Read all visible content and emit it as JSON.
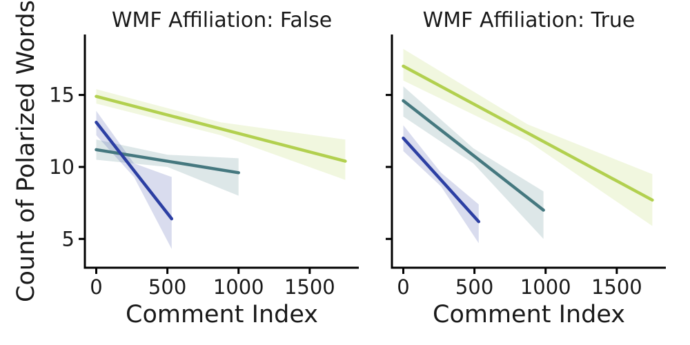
{
  "figure": {
    "background": "#ffffff",
    "text_color": "#1a1a1a",
    "axis_color": "#000000"
  },
  "chart_data": [
    {
      "type": "line",
      "title": "WMF Affiliation: False",
      "xlabel": "Comment Index",
      "ylabel": "Count of Polarized Words",
      "xlim": [
        -80,
        1845
      ],
      "ylim": [
        3.0,
        19.2
      ],
      "xticks": [
        0,
        500,
        1000,
        1500
      ],
      "xtick_labels": [
        "0",
        "500",
        "1000",
        "1500"
      ],
      "yticks": [
        5,
        10,
        15
      ],
      "ytick_labels": [
        "5",
        "10",
        "15"
      ],
      "show_ytick_labels": true,
      "grid": false,
      "legend": "none",
      "series": [
        {
          "name": "series-green",
          "color": "#b2d04f",
          "x": [
            0,
            1750
          ],
          "y": [
            14.9,
            10.4
          ],
          "band": {
            "x": [
              0,
              875,
              1750
            ],
            "upper": [
              15.4,
              13.1,
              11.9
            ],
            "lower": [
              14.4,
              12.2,
              9.1
            ]
          }
        },
        {
          "name": "series-teal",
          "color": "#45787f",
          "x": [
            0,
            1000
          ],
          "y": [
            11.2,
            9.6
          ],
          "band": {
            "x": [
              0,
              500,
              1000
            ],
            "upper": [
              11.9,
              10.85,
              10.6
            ],
            "lower": [
              10.5,
              10.0,
              8.0
            ]
          }
        },
        {
          "name": "series-blue",
          "color": "#2c3fa3",
          "x": [
            0,
            530
          ],
          "y": [
            13.1,
            6.4
          ],
          "band": {
            "x": [
              0,
              265,
              530
            ],
            "upper": [
              13.9,
              10.25,
              9.3
            ],
            "lower": [
              12.2,
              9.3,
              4.3
            ]
          }
        }
      ]
    },
    {
      "type": "line",
      "title": "WMF Affiliation: True",
      "xlabel": "Comment Index",
      "ylabel": "",
      "xlim": [
        -80,
        1845
      ],
      "ylim": [
        3.0,
        19.2
      ],
      "xticks": [
        0,
        500,
        1000,
        1500
      ],
      "xtick_labels": [
        "0",
        "500",
        "1000",
        "1500"
      ],
      "yticks": [
        5,
        10,
        15
      ],
      "ytick_labels": [
        "5",
        "10",
        "15"
      ],
      "show_ytick_labels": false,
      "grid": false,
      "legend": "none",
      "series": [
        {
          "name": "series-green",
          "color": "#b2d04f",
          "x": [
            0,
            1750
          ],
          "y": [
            17.0,
            7.7
          ],
          "band": {
            "x": [
              0,
              875,
              1750
            ],
            "upper": [
              18.2,
              12.95,
              9.5
            ],
            "lower": [
              16.0,
              11.8,
              5.9
            ]
          }
        },
        {
          "name": "series-teal",
          "color": "#45787f",
          "x": [
            0,
            985
          ],
          "y": [
            14.6,
            7.0
          ],
          "band": {
            "x": [
              0,
              492,
              985
            ],
            "upper": [
              15.6,
              11.3,
              8.3
            ],
            "lower": [
              13.5,
              10.25,
              5.0
            ]
          }
        },
        {
          "name": "series-blue",
          "color": "#2c3fa3",
          "x": [
            0,
            530
          ],
          "y": [
            12.0,
            6.2
          ],
          "band": {
            "x": [
              0,
              265,
              530
            ],
            "upper": [
              12.9,
              9.6,
              7.4
            ],
            "lower": [
              11.1,
              8.65,
              4.7
            ]
          }
        }
      ]
    }
  ]
}
